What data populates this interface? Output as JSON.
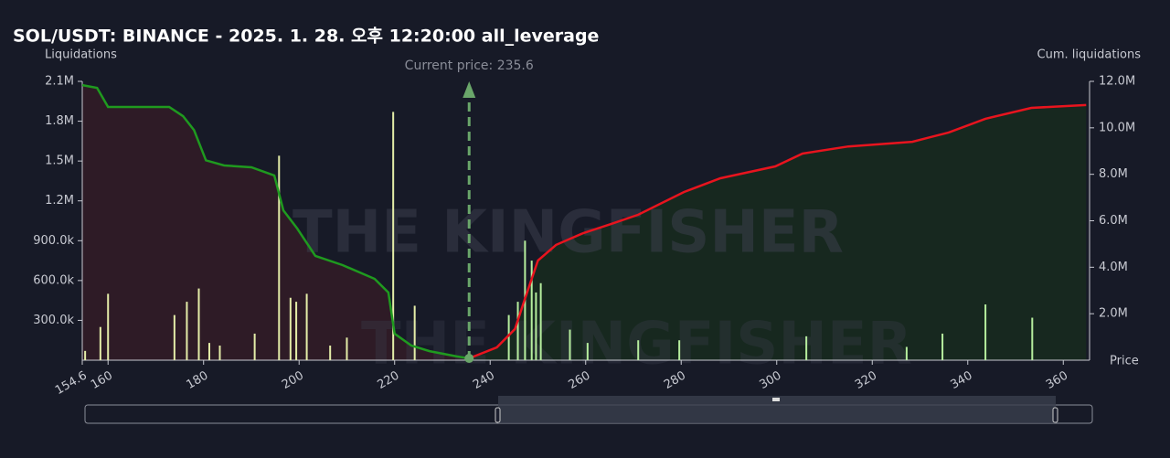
{
  "chart_data": {
    "type": "bar",
    "title": "SOL/USDT: BINANCE - 2025. 1. 28. 오후 12:20:00 all_leverage",
    "ylabel": "Liquidations",
    "y2label": "Cum. liquidations",
    "xlabel": "Price",
    "watermark": "THE KINGFISHER",
    "annotation": {
      "text": "Current price: 235.6",
      "x": 235.6,
      "color": "#6aa66a"
    },
    "xlim": [
      154.6,
      365.5
    ],
    "xticks": [
      154.6,
      160,
      180,
      200,
      220,
      240,
      260,
      280,
      300,
      320,
      340,
      360
    ],
    "ylim": [
      0,
      2100000
    ],
    "yticks": [
      {
        "value": 300000,
        "label": "300.0k"
      },
      {
        "value": 600000,
        "label": "600.0k"
      },
      {
        "value": 900000,
        "label": "900.0k"
      },
      {
        "value": 1200000,
        "label": "1.2M"
      },
      {
        "value": 1500000,
        "label": "1.5M"
      },
      {
        "value": 1800000,
        "label": "1.8M"
      },
      {
        "value": 2100000,
        "label": "2.1M"
      }
    ],
    "y2lim": [
      0,
      12000000
    ],
    "y2ticks": [
      {
        "value": 2000000,
        "label": "2.0M"
      },
      {
        "value": 4000000,
        "label": "4.0M"
      },
      {
        "value": 6000000,
        "label": "6.0M"
      },
      {
        "value": 8000000,
        "label": "8.0M"
      },
      {
        "value": 10000000,
        "label": "10.0M"
      },
      {
        "value": 12000000,
        "label": "12.0M"
      }
    ],
    "series": [
      {
        "kind": "bar",
        "color": "#e4eda8",
        "x": [
          155.2,
          158.4,
          160,
          173.9,
          176.5,
          179,
          181.2,
          183.4,
          190.7,
          195.8,
          198.2,
          199.4,
          201.6,
          206.5,
          210,
          219.7,
          224.2
        ],
        "values": [
          70000,
          250000,
          500000,
          340000,
          440000,
          540000,
          130000,
          110000,
          200000,
          1540000,
          470000,
          440000,
          500000,
          110000,
          170000,
          1870000,
          410000
        ]
      },
      {
        "kind": "bar",
        "color": "#b6ee9e",
        "x": [
          243.9,
          245.8,
          247.3,
          248.7,
          249.6,
          250.6,
          256.7,
          260.4,
          271,
          279.6,
          306.2,
          327.2,
          334.7,
          343.7,
          353.5
        ],
        "values": [
          340000,
          440000,
          900000,
          750000,
          510000,
          580000,
          230000,
          130000,
          150000,
          150000,
          180000,
          100000,
          200000,
          420000,
          320000
        ]
      },
      {
        "kind": "line",
        "axis": "y2",
        "color": "#1f9a1f",
        "fill": "#2e1b26",
        "x": [
          154.6,
          157.7,
          160,
          172.8,
          175.7,
          178,
          180.5,
          184.3,
          190,
          194.8,
          196.7,
          199.6,
          203.4,
          209.1,
          215.8,
          218.7,
          220,
          223.5,
          227.3,
          233,
          235.6
        ],
        "values": [
          11840000,
          11720000,
          10900000,
          10900000,
          10500000,
          9900000,
          8600000,
          8380000,
          8300000,
          7950000,
          6450000,
          5670000,
          4490000,
          4090000,
          3500000,
          2910000,
          1140000,
          630000,
          390000,
          160000,
          80000
        ]
      },
      {
        "kind": "line",
        "axis": "y2",
        "color": "#e8141e",
        "fill": "#17281f",
        "x": [
          235.6,
          241.4,
          245.2,
          247.1,
          250,
          253.8,
          259.5,
          265.3,
          271,
          280.6,
          288.2,
          299.7,
          305.4,
          315,
          328.4,
          336,
          343.7,
          353.3,
          364.8
        ],
        "values": [
          80000,
          550000,
          1340000,
          2520000,
          4290000,
          4960000,
          5470000,
          5860000,
          6260000,
          7240000,
          7830000,
          8340000,
          8890000,
          9200000,
          9400000,
          9800000,
          10390000,
          10860000,
          10980000
        ]
      }
    ]
  }
}
